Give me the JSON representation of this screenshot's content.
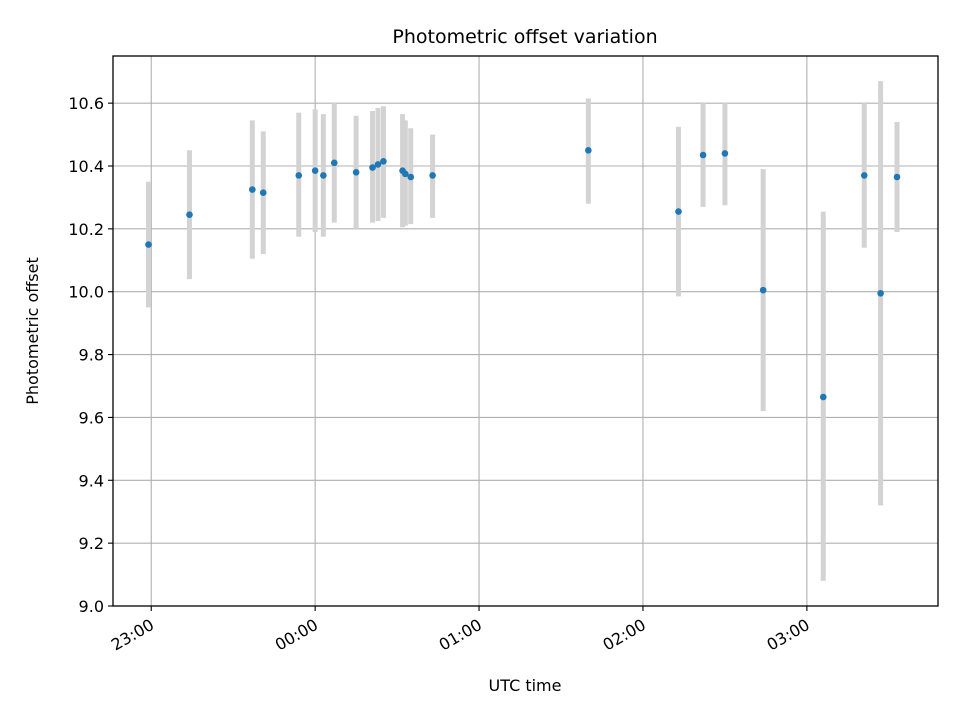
{
  "chart_data": {
    "type": "scatter",
    "title": "Photometric offset variation",
    "xlabel": "UTC time",
    "ylabel": "Photometric offset",
    "ylim": [
      9.0,
      10.75
    ],
    "xlim": [
      "22:46",
      "03:48"
    ],
    "grid": true,
    "x_ticks": [
      "23:00",
      "00:00",
      "01:00",
      "02:00",
      "03:00"
    ],
    "y_ticks": [
      "9.0",
      "9.2",
      "9.4",
      "9.6",
      "9.8",
      "10.0",
      "10.2",
      "10.4",
      "10.6"
    ],
    "colors": {
      "points": "#1f77b4",
      "error_bars": "#d3d3d3",
      "grid": "#b0b0b0"
    },
    "points": [
      {
        "x": "22:59",
        "y": 10.15,
        "err_low": 9.95,
        "err_high": 10.35
      },
      {
        "x": "23:14",
        "y": 10.245,
        "err_low": 10.04,
        "err_high": 10.45
      },
      {
        "x": "23:37",
        "y": 10.325,
        "err_low": 10.105,
        "err_high": 10.545
      },
      {
        "x": "23:41",
        "y": 10.315,
        "err_low": 10.12,
        "err_high": 10.51
      },
      {
        "x": "23:54",
        "y": 10.37,
        "err_low": 10.175,
        "err_high": 10.57
      },
      {
        "x": "00:00",
        "y": 10.385,
        "err_low": 10.19,
        "err_high": 10.58
      },
      {
        "x": "00:03",
        "y": 10.37,
        "err_low": 10.175,
        "err_high": 10.565
      },
      {
        "x": "00:07",
        "y": 10.41,
        "err_low": 10.22,
        "err_high": 10.6
      },
      {
        "x": "00:15",
        "y": 10.38,
        "err_low": 10.2,
        "err_high": 10.56
      },
      {
        "x": "00:21",
        "y": 10.395,
        "err_low": 10.22,
        "err_high": 10.575
      },
      {
        "x": "00:23",
        "y": 10.405,
        "err_low": 10.225,
        "err_high": 10.585
      },
      {
        "x": "00:25",
        "y": 10.415,
        "err_low": 10.235,
        "err_high": 10.59
      },
      {
        "x": "00:32",
        "y": 10.385,
        "err_low": 10.205,
        "err_high": 10.565
      },
      {
        "x": "00:33",
        "y": 10.375,
        "err_low": 10.21,
        "err_high": 10.545
      },
      {
        "x": "00:35",
        "y": 10.365,
        "err_low": 10.215,
        "err_high": 10.52
      },
      {
        "x": "00:43",
        "y": 10.37,
        "err_low": 10.235,
        "err_high": 10.5
      },
      {
        "x": "01:40",
        "y": 10.45,
        "err_low": 10.28,
        "err_high": 10.615
      },
      {
        "x": "02:13",
        "y": 10.255,
        "err_low": 9.985,
        "err_high": 10.525
      },
      {
        "x": "02:22",
        "y": 10.435,
        "err_low": 10.27,
        "err_high": 10.6
      },
      {
        "x": "02:30",
        "y": 10.44,
        "err_low": 10.275,
        "err_high": 10.6
      },
      {
        "x": "02:44",
        "y": 10.005,
        "err_low": 9.62,
        "err_high": 10.39
      },
      {
        "x": "03:06",
        "y": 9.665,
        "err_low": 9.08,
        "err_high": 10.255
      },
      {
        "x": "03:21",
        "y": 10.37,
        "err_low": 10.14,
        "err_high": 10.6
      },
      {
        "x": "03:27",
        "y": 9.995,
        "err_low": 9.32,
        "err_high": 10.67
      },
      {
        "x": "03:33",
        "y": 10.365,
        "err_low": 10.19,
        "err_high": 10.54
      }
    ]
  }
}
